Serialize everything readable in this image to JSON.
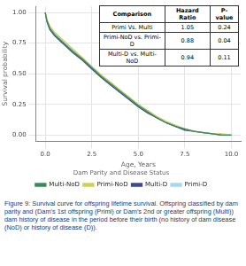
{
  "chart_data": {
    "type": "line",
    "x_label": "Age, Years",
    "y_label": "Survival probability",
    "legend_title": "Dam Parity and Disease Status",
    "legend": "bottom",
    "grid": true,
    "xlim": [
      -0.5,
      10.5
    ],
    "xticks": [
      {
        "value": 0,
        "label": "0.0"
      },
      {
        "value": 2.5,
        "label": "2.5"
      },
      {
        "value": 5,
        "label": "5.0"
      },
      {
        "value": 7.5,
        "label": "7.5"
      },
      {
        "value": 10,
        "label": "10.0"
      }
    ],
    "ylim": [
      -0.05,
      1.05
    ],
    "yticks": [
      {
        "value": 0,
        "label": "0.00"
      },
      {
        "value": 0.25,
        "label": "0.25"
      },
      {
        "value": 0.5,
        "label": "0.50"
      },
      {
        "value": 0.75,
        "label": "0.75"
      },
      {
        "value": 1,
        "label": "1.00"
      }
    ],
    "x": [
      0,
      0.1,
      0.25,
      0.5,
      1,
      1.5,
      2,
      2.5,
      3,
      3.5,
      4,
      4.5,
      5,
      5.5,
      6,
      6.5,
      7,
      7.5,
      8,
      8.5,
      9,
      9.5,
      10
    ],
    "series": [
      {
        "name": "Multi-NoD",
        "color": "#3b8a5a",
        "values": [
          1.0,
          0.93,
          0.87,
          0.82,
          0.75,
          0.68,
          0.62,
          0.55,
          0.48,
          0.42,
          0.36,
          0.3,
          0.24,
          0.19,
          0.14,
          0.1,
          0.07,
          0.05,
          0.03,
          0.02,
          0.01,
          0.0,
          0.0
        ]
      },
      {
        "name": "Primi-NoD",
        "color": "#cfcf55",
        "values": [
          1.0,
          0.94,
          0.89,
          0.84,
          0.77,
          0.7,
          0.63,
          0.56,
          0.49,
          0.43,
          0.37,
          0.31,
          0.25,
          0.2,
          0.15,
          0.11,
          0.08,
          0.05,
          0.03,
          0.02,
          0.01,
          0.01,
          0.0
        ]
      },
      {
        "name": "Multi-D",
        "color": "#3f4a8a",
        "values": [
          1.0,
          0.92,
          0.86,
          0.81,
          0.74,
          0.67,
          0.61,
          0.54,
          0.47,
          0.41,
          0.35,
          0.29,
          0.23,
          0.18,
          0.14,
          0.1,
          0.07,
          0.04,
          0.03,
          0.02,
          0.01,
          0.0,
          0.0
        ]
      },
      {
        "name": "Primi-D",
        "color": "#a6d8ef",
        "values": [
          1.0,
          0.93,
          0.88,
          0.83,
          0.76,
          0.69,
          0.63,
          0.56,
          0.49,
          0.43,
          0.37,
          0.31,
          0.25,
          0.2,
          0.15,
          0.11,
          0.08,
          0.05,
          0.03,
          0.02,
          0.01,
          0.0,
          0.0
        ]
      }
    ],
    "table": {
      "header": [
        "Comparison",
        "Hazard Ratio",
        "P-value"
      ],
      "rows": [
        [
          "Primi Vs. Multi",
          "1.05",
          "0.24"
        ],
        [
          "Primi-NoD vs. Primi-D",
          "0.88",
          "0.04"
        ],
        [
          "Multi-D vs. Multi-NoD",
          "0.94",
          "0.11"
        ]
      ]
    },
    "caption": "Figure 9: Survival curve for offspring lifetime survival. Offspring classified by dam parity and (Dam's 1st offspring (Primi) or Dam's 2nd or greater offspring (Multi)) dam history of disease in the period before their birth (no history of dam disease (NoD) or history of disease (D))."
  }
}
